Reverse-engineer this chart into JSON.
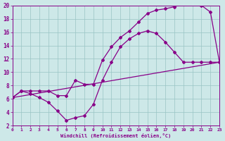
{
  "bg_color": "#cde8e8",
  "grid_color": "#99c4c4",
  "line_color": "#880088",
  "xlabel": "Windchill (Refroidissement éolien,°C)",
  "xlim": [
    0,
    23
  ],
  "ylim": [
    2,
    20
  ],
  "xticks": [
    0,
    1,
    2,
    3,
    4,
    5,
    6,
    7,
    8,
    9,
    10,
    11,
    12,
    13,
    14,
    15,
    16,
    17,
    18,
    19,
    20,
    21,
    22,
    23
  ],
  "yticks": [
    2,
    4,
    6,
    8,
    10,
    12,
    14,
    16,
    18,
    20
  ],
  "line1_x": [
    0,
    1,
    2,
    3,
    4,
    5,
    6,
    7,
    8,
    9,
    10,
    11,
    12,
    13,
    14,
    15,
    16,
    17,
    18,
    19,
    20,
    21,
    22,
    23
  ],
  "line1_y": [
    6.2,
    7.2,
    7.2,
    7.2,
    7.2,
    6.5,
    6.5,
    8.8,
    8.2,
    8.2,
    11.8,
    13.8,
    15.2,
    16.2,
    17.5,
    18.8,
    19.3,
    19.5,
    19.8,
    20.2,
    20.3,
    20.0,
    19.0,
    11.5
  ],
  "line2_x": [
    0,
    1,
    2,
    3,
    4,
    5,
    6,
    7,
    8,
    9,
    10,
    11,
    12,
    13,
    14,
    15,
    16,
    17,
    18,
    19,
    20,
    21,
    22,
    23
  ],
  "line2_y": [
    6.2,
    7.2,
    6.8,
    6.2,
    5.5,
    4.2,
    2.8,
    3.2,
    3.5,
    5.2,
    8.8,
    11.5,
    13.8,
    15.0,
    15.8,
    16.2,
    15.8,
    14.5,
    13.0,
    11.5,
    11.5,
    11.5,
    11.5,
    11.5
  ],
  "line3_x": [
    0,
    23
  ],
  "line3_y": [
    6.2,
    11.5
  ],
  "marker": "D",
  "markersize": 2.0,
  "linewidth": 0.9
}
